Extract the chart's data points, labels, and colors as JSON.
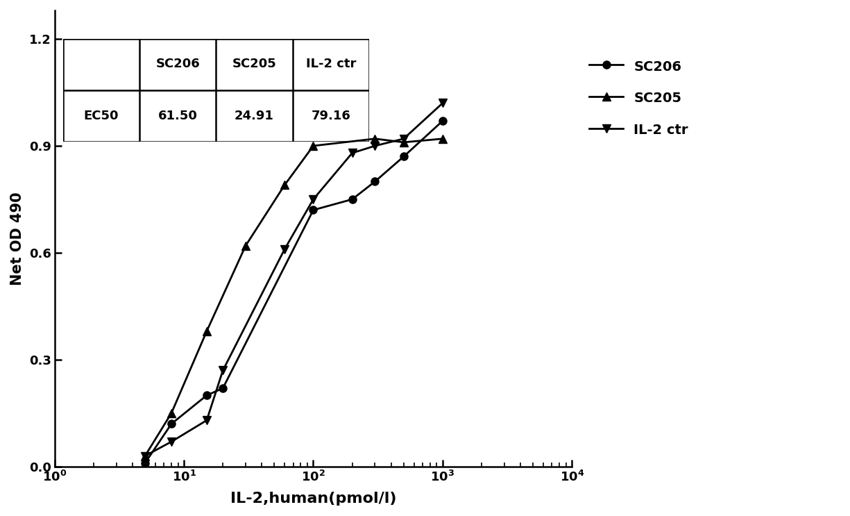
{
  "xlabel": "IL-2,human(pmol/l)",
  "ylabel": "Net OD 490",
  "xlim": [
    1,
    10000
  ],
  "ylim": [
    0.0,
    1.28
  ],
  "yticks": [
    0.0,
    0.3,
    0.6,
    0.9,
    1.2
  ],
  "table_headers": [
    "",
    "SC206",
    "SC205",
    "IL-2 ctr"
  ],
  "table_row": [
    "EC50",
    "61.50",
    "24.91",
    "79.16"
  ],
  "ec50_SC206": 61.5,
  "ec50_SC205": 24.91,
  "ec50_IL2ctr": 79.16,
  "SC206_x": [
    5,
    8,
    15,
    20,
    100,
    200,
    300,
    500,
    1000
  ],
  "SC206_y": [
    0.01,
    0.12,
    0.2,
    0.22,
    0.72,
    0.75,
    0.8,
    0.87,
    0.97
  ],
  "SC205_x": [
    5,
    8,
    15,
    30,
    60,
    100,
    300,
    500,
    1000
  ],
  "SC205_y": [
    0.03,
    0.15,
    0.38,
    0.62,
    0.79,
    0.9,
    0.92,
    0.91,
    0.92
  ],
  "IL2ctr_x": [
    5,
    8,
    15,
    20,
    60,
    100,
    200,
    300,
    500,
    1000
  ],
  "IL2ctr_y": [
    0.03,
    0.07,
    0.13,
    0.27,
    0.61,
    0.75,
    0.88,
    0.9,
    0.92,
    1.02
  ],
  "color": "#000000",
  "bg_color": "#ffffff",
  "legend_labels": [
    "SC206",
    "SC205",
    "IL-2 ctr"
  ],
  "marker_SC206": "o",
  "marker_SC205": "^",
  "marker_IL2ctr": "v",
  "figsize": [
    12.25,
    7.43
  ],
  "dpi": 100
}
